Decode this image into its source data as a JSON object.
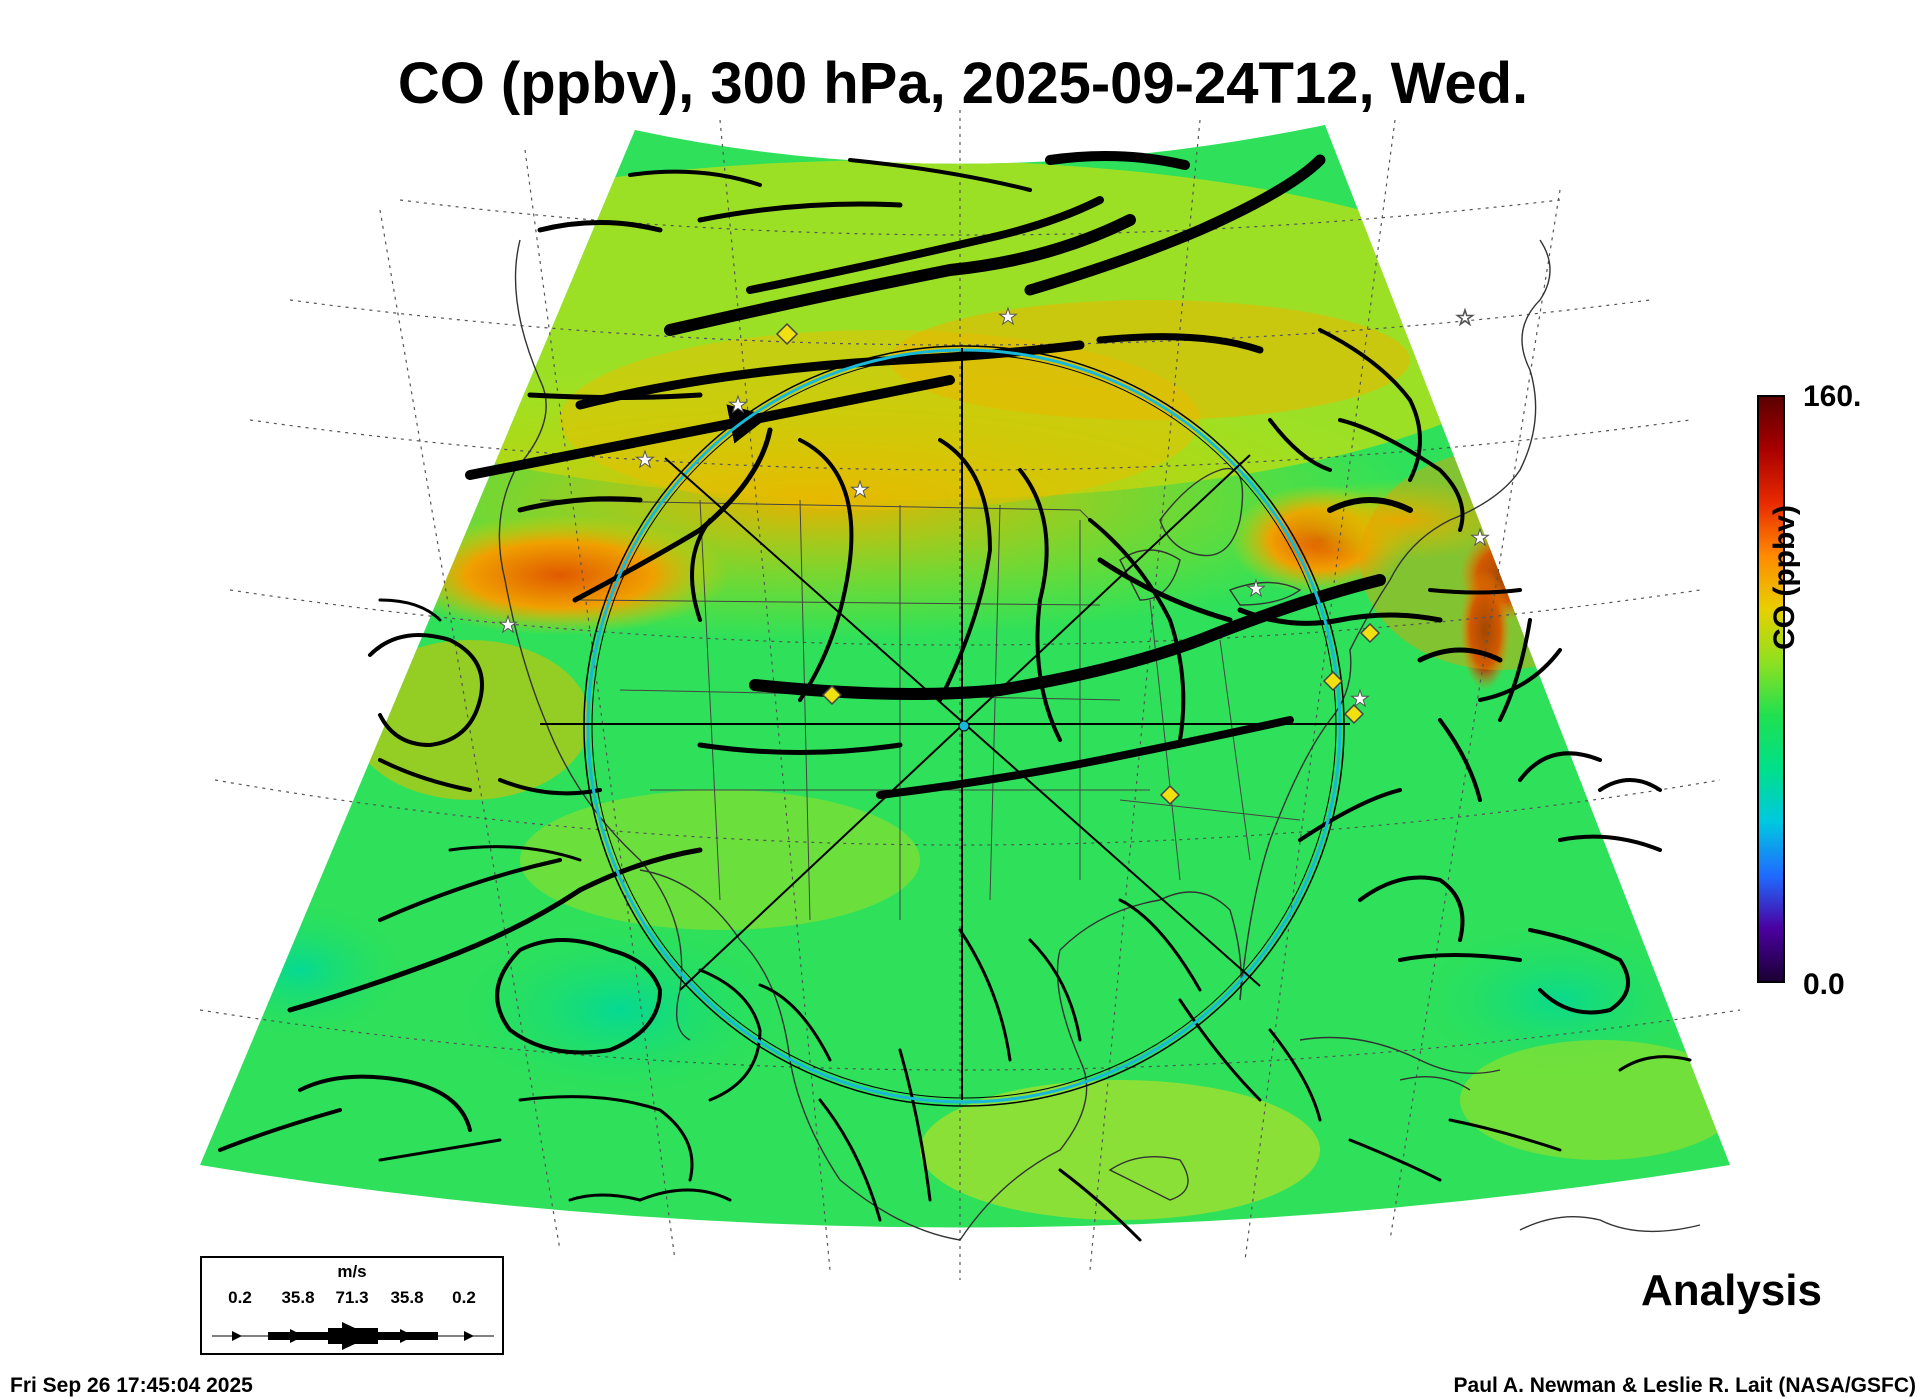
{
  "title": "CO (ppbv), 300 hPa, 2025-09-24T12, Wed.",
  "colorbar": {
    "max_label": "160.",
    "min_label": "0.0",
    "title": "CO (ppbv)",
    "stops": [
      "#1a0033",
      "#4b00a0",
      "#1f6bff",
      "#00c8e0",
      "#00e08a",
      "#1fe050",
      "#8ee020",
      "#e8d000",
      "#ff8a00",
      "#e82a00",
      "#a80000",
      "#5a0000"
    ]
  },
  "legend": {
    "unit": "m/s",
    "ticks": [
      "0.2",
      "35.8",
      "71.3",
      "35.8",
      "0.2"
    ]
  },
  "label_analysis": "Analysis",
  "footer": {
    "timestamp": "Fri Sep 26 17:45:04 2025",
    "credit": "Paul A. Newman & Leslie R. Lait (NASA/GSFC)"
  },
  "colors": {
    "background_field": "#1fe05a",
    "high_co": "#e88a00",
    "ring": "#19b8d8"
  }
}
